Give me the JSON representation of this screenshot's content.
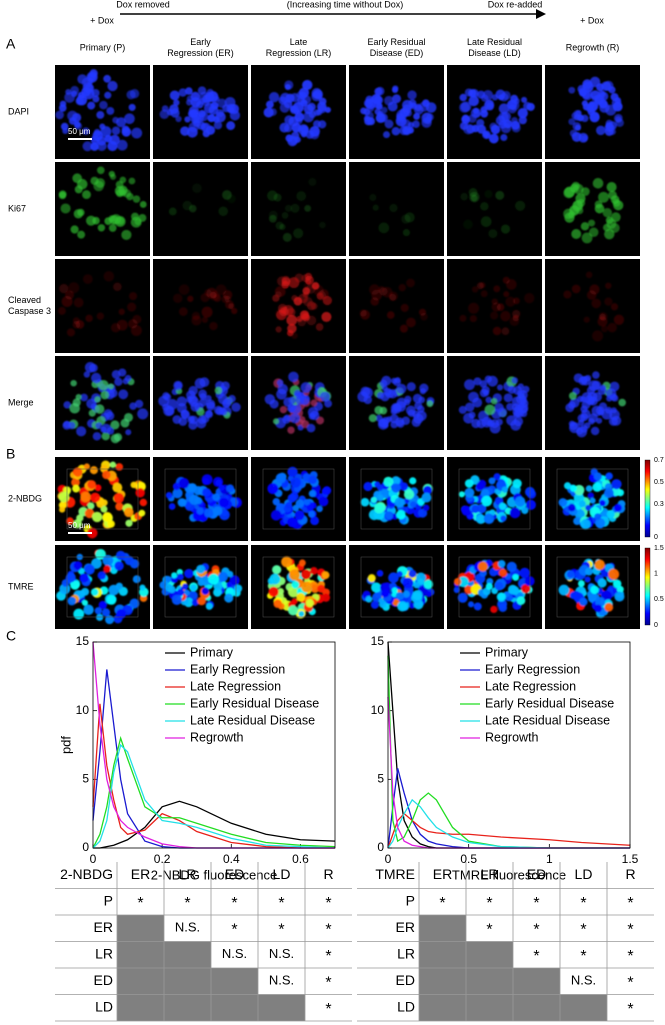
{
  "timeline": {
    "start": "+ Dox",
    "removed": "Dox removed",
    "middle": "(Increasing time without Dox)",
    "readded": "Dox re-added",
    "end": "+ Dox"
  },
  "panels": {
    "a": "A",
    "b": "B",
    "c": "C"
  },
  "columns": [
    [
      "Primary (P)"
    ],
    [
      "Early",
      "Regression (ER)"
    ],
    [
      "Late",
      "Regression (LR)"
    ],
    [
      "Early Residual",
      "Disease (ED)"
    ],
    [
      "Late Residual",
      "Disease (LD)"
    ],
    [
      "Regrowth (R)"
    ]
  ],
  "rows_a": [
    [
      "DAPI"
    ],
    [
      "Ki67"
    ],
    [
      "Cleaved",
      "Caspase 3"
    ],
    [
      "Merge"
    ]
  ],
  "rows_b": [
    "2-NBDG",
    "TMRE"
  ],
  "scale_bar": "50 μm",
  "colorbars": [
    {
      "lim": [
        0,
        0.7
      ],
      "ticks": [
        0.7,
        0.5,
        0.3,
        0
      ]
    },
    {
      "lim": [
        0,
        1.5
      ],
      "ticks": [
        1.5,
        1,
        0.5,
        0
      ]
    }
  ],
  "chart_data": [
    {
      "type": "line",
      "xlabel": "2-NBDG fluorescence",
      "ylabel": "pdf",
      "x": [
        0,
        0.02,
        0.04,
        0.06,
        0.08,
        0.1,
        0.15,
        0.2,
        0.25,
        0.3,
        0.4,
        0.5,
        0.6,
        0.7
      ],
      "xlim": [
        0,
        0.7
      ],
      "xticks": [
        0,
        0.2,
        0.4,
        0.6
      ],
      "ylim": [
        0,
        15
      ],
      "yticks": [
        0,
        5,
        10,
        15
      ],
      "series": [
        {
          "name": "Primary",
          "color": "#000000",
          "values": [
            0,
            0,
            0.1,
            0.2,
            0.4,
            0.6,
            1.5,
            3.0,
            3.4,
            3.0,
            1.8,
            1.0,
            0.6,
            0.5
          ]
        },
        {
          "name": "Early Regression",
          "color": "#1a1ad0",
          "values": [
            2,
            7,
            13,
            9,
            5,
            2.5,
            0.5,
            0.1,
            0,
            0,
            0,
            0,
            0,
            0
          ]
        },
        {
          "name": "Late Regression",
          "color": "#e8221b",
          "values": [
            3,
            10.5,
            6,
            3.5,
            1.5,
            1.0,
            1.3,
            2.5,
            2.0,
            1.2,
            0.4,
            0.1,
            0,
            0
          ]
        },
        {
          "name": "Early Residual Disease",
          "color": "#22dd22",
          "values": [
            0,
            1,
            3,
            6,
            8,
            6.5,
            3,
            2.2,
            2.2,
            1.8,
            1.0,
            0.4,
            0.2,
            0.1
          ]
        },
        {
          "name": "Late Residual Disease",
          "color": "#22e0e8",
          "values": [
            0,
            0.5,
            2,
            5.5,
            7.5,
            7,
            3.5,
            2,
            1.8,
            1.5,
            0.7,
            0.2,
            0.1,
            0
          ]
        },
        {
          "name": "Regrowth",
          "color": "#e020e0",
          "values": [
            15,
            9,
            5,
            3,
            2,
            1.5,
            0.8,
            0.3,
            0.1,
            0,
            0,
            0,
            0,
            0
          ]
        }
      ]
    },
    {
      "type": "line",
      "xlabel": "TMRE fluorescence",
      "x": [
        0,
        0.03,
        0.06,
        0.1,
        0.15,
        0.2,
        0.25,
        0.3,
        0.4,
        0.5,
        0.7,
        1.0,
        1.2,
        1.5
      ],
      "xlim": [
        0,
        1.5
      ],
      "xticks": [
        0,
        0.5,
        1,
        1.5
      ],
      "ylim": [
        0,
        15
      ],
      "yticks": [
        0,
        5,
        10,
        15
      ],
      "series": [
        {
          "name": "Primary",
          "color": "#000000",
          "values": [
            15,
            10,
            5,
            2,
            0.8,
            0.3,
            0.1,
            0,
            0,
            0,
            0,
            0,
            0,
            0
          ]
        },
        {
          "name": "Early Regression",
          "color": "#1a1ad0",
          "values": [
            0,
            3,
            5.8,
            4,
            2,
            1.0,
            0.5,
            0.3,
            0.1,
            0,
            0,
            0,
            0,
            0
          ]
        },
        {
          "name": "Late Regression",
          "color": "#e8221b",
          "values": [
            0,
            1,
            2,
            2.5,
            2,
            1.5,
            1.2,
            1.1,
            1.0,
            1.0,
            0.8,
            0.6,
            0.4,
            0.2
          ]
        },
        {
          "name": "Early Residual Disease",
          "color": "#22dd22",
          "values": [
            14,
            2,
            0.5,
            0.8,
            2,
            3.5,
            4,
            3.5,
            1.5,
            0.5,
            0.1,
            0,
            0,
            0
          ]
        },
        {
          "name": "Late Residual Disease",
          "color": "#22e0e8",
          "values": [
            0,
            0.5,
            1.5,
            2.5,
            3.5,
            3,
            2.2,
            1.5,
            0.8,
            0.4,
            0.1,
            0,
            0,
            0
          ]
        },
        {
          "name": "Regrowth",
          "color": "#e020e0",
          "values": [
            11,
            4,
            1.5,
            0.5,
            0.2,
            0.1,
            0,
            0,
            0,
            0,
            0,
            0,
            0,
            0
          ]
        }
      ]
    }
  ],
  "tables": [
    {
      "corner": "2-NBDG",
      "columns": [
        "ER",
        "LR",
        "ED",
        "LD",
        "R"
      ],
      "rows": [
        {
          "label": "P",
          "cells": [
            "*",
            "*",
            "*",
            "*",
            "*"
          ]
        },
        {
          "label": "ER",
          "cells": [
            null,
            "N.S.",
            "*",
            "*",
            "*"
          ]
        },
        {
          "label": "LR",
          "cells": [
            null,
            null,
            "N.S.",
            "N.S.",
            "*"
          ]
        },
        {
          "label": "ED",
          "cells": [
            null,
            null,
            null,
            "N.S.",
            "*"
          ]
        },
        {
          "label": "LD",
          "cells": [
            null,
            null,
            null,
            null,
            "*"
          ]
        }
      ]
    },
    {
      "corner": "TMRE",
      "columns": [
        "ER",
        "LR",
        "ED",
        "LD",
        "R"
      ],
      "rows": [
        {
          "label": "P",
          "cells": [
            "*",
            "*",
            "*",
            "*",
            "*"
          ]
        },
        {
          "label": "ER",
          "cells": [
            null,
            "*",
            "*",
            "*",
            "*"
          ]
        },
        {
          "label": "LR",
          "cells": [
            null,
            null,
            "*",
            "*",
            "*"
          ]
        },
        {
          "label": "ED",
          "cells": [
            null,
            null,
            null,
            "N.S.",
            "*"
          ]
        },
        {
          "label": "LD",
          "cells": [
            null,
            null,
            null,
            null,
            "*"
          ]
        }
      ]
    }
  ]
}
